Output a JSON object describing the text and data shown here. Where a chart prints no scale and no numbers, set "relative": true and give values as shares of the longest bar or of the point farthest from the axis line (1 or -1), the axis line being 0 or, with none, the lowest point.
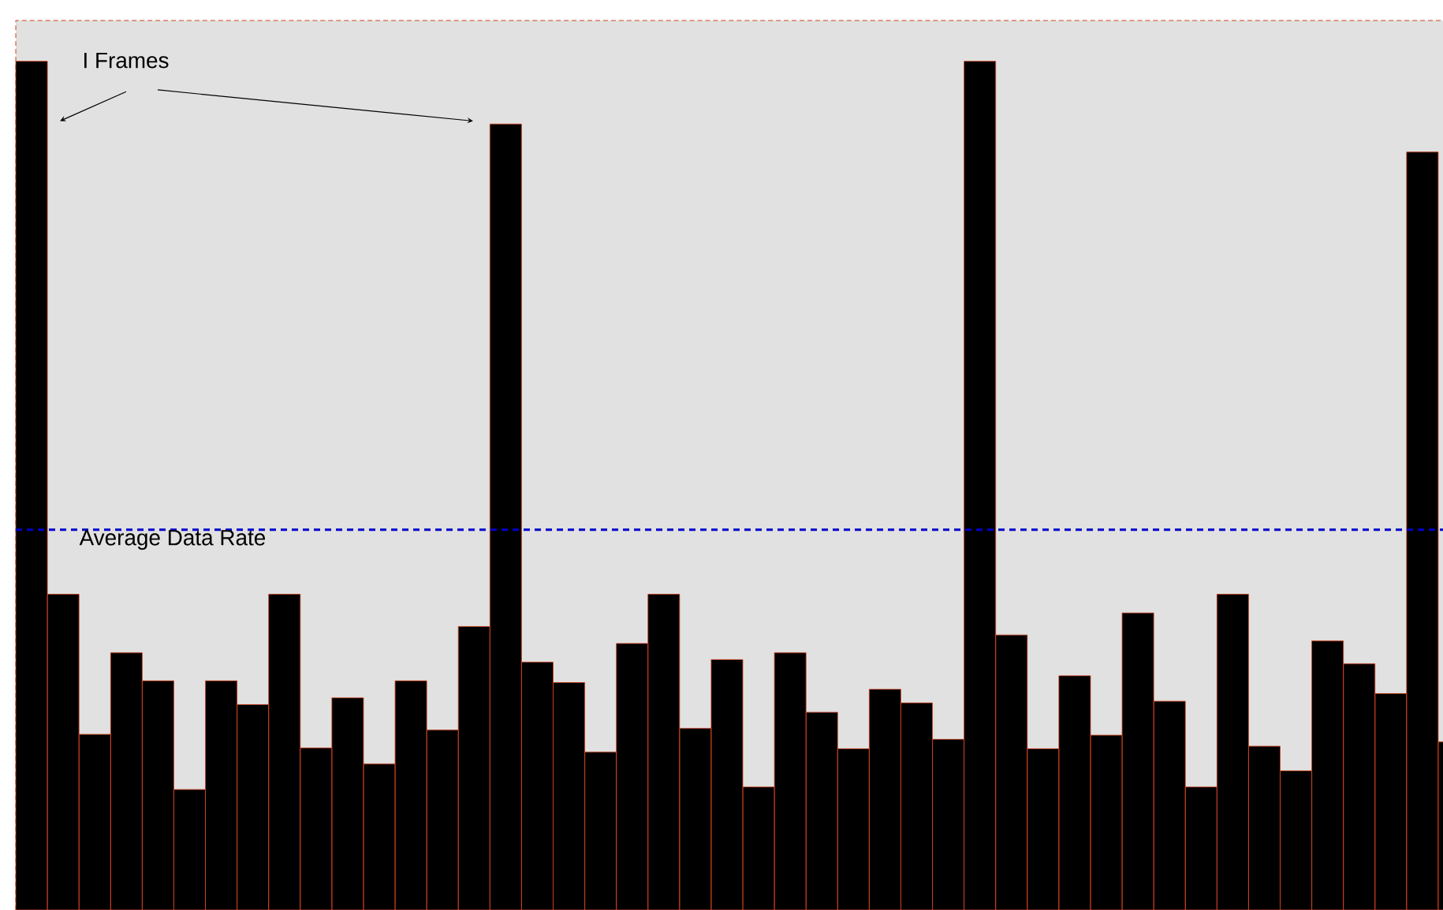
{
  "chart_data": {
    "type": "bar",
    "relative": true,
    "color": "#000000",
    "categories": [
      null,
      null,
      null,
      null,
      null,
      null,
      null,
      null,
      null,
      null,
      null,
      null,
      null,
      null,
      null,
      null,
      null,
      null,
      null,
      null,
      null,
      null,
      null,
      null,
      null,
      null,
      null,
      null,
      null,
      null,
      null,
      null,
      null,
      null,
      null,
      null,
      null,
      null,
      null,
      null,
      null,
      null,
      null,
      null,
      null,
      null
    ],
    "values": [
      1,
      0.372,
      0.207,
      0.303,
      0.27,
      0.142,
      0.27,
      0.242,
      0.372,
      0.191,
      0.25,
      0.172,
      0.27,
      0.212,
      0.334,
      0.926,
      0.292,
      0.268,
      0.186,
      0.314,
      0.372,
      0.214,
      0.295,
      0.145,
      0.303,
      0.233,
      0.19,
      0.26,
      0.244,
      0.201,
      1,
      0.324,
      0.19,
      0.276,
      0.206,
      0.35,
      0.246,
      0.145,
      0.372,
      0.193,
      0.164,
      0.317,
      0.29,
      0.255,
      0.893,
      0.198
    ],
    "ref_lines": [
      {
        "axis": "y",
        "value": 0.448,
        "label": "Average Data Rate",
        "color": "#0000cc",
        "line_style": "dashed"
      }
    ],
    "annotations": [
      "I Frames"
    ]
  }
}
